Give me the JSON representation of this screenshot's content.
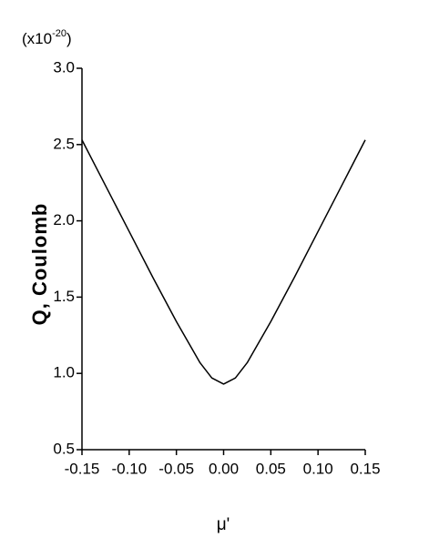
{
  "chart_data": {
    "type": "line",
    "y_multiplier_base": "(x10",
    "y_multiplier_exponent": "-20",
    "y_multiplier_close": ")",
    "ylabel": "Q,  Coulomb",
    "xlabel": "μ'",
    "x": [
      -0.15,
      -0.125,
      -0.1,
      -0.075,
      -0.05,
      -0.025,
      -0.0125,
      0,
      0.0125,
      0.025,
      0.05,
      0.075,
      0.1,
      0.125,
      0.15
    ],
    "values": [
      2.53,
      2.23,
      1.93,
      1.63,
      1.34,
      1.07,
      0.97,
      0.93,
      0.97,
      1.07,
      1.34,
      1.63,
      1.93,
      2.23,
      2.53
    ],
    "color": "#000000",
    "xlim": [
      -0.15,
      0.15
    ],
    "xticks": [
      -0.15,
      {
        "value": -0.1,
        "label": "-0.10"
      },
      -0.05,
      {
        "value": 0,
        "label": "0.00"
      },
      0.05,
      {
        "value": 0.1,
        "label": "0.10"
      },
      0.15
    ],
    "ylim": [
      0.5,
      3.0
    ],
    "yticks": [
      0.5,
      {
        "value": 1,
        "label": "1.0"
      },
      1.5,
      {
        "value": 2,
        "label": "2.0"
      },
      2.5,
      {
        "value": 3,
        "label": "3.0"
      }
    ]
  }
}
